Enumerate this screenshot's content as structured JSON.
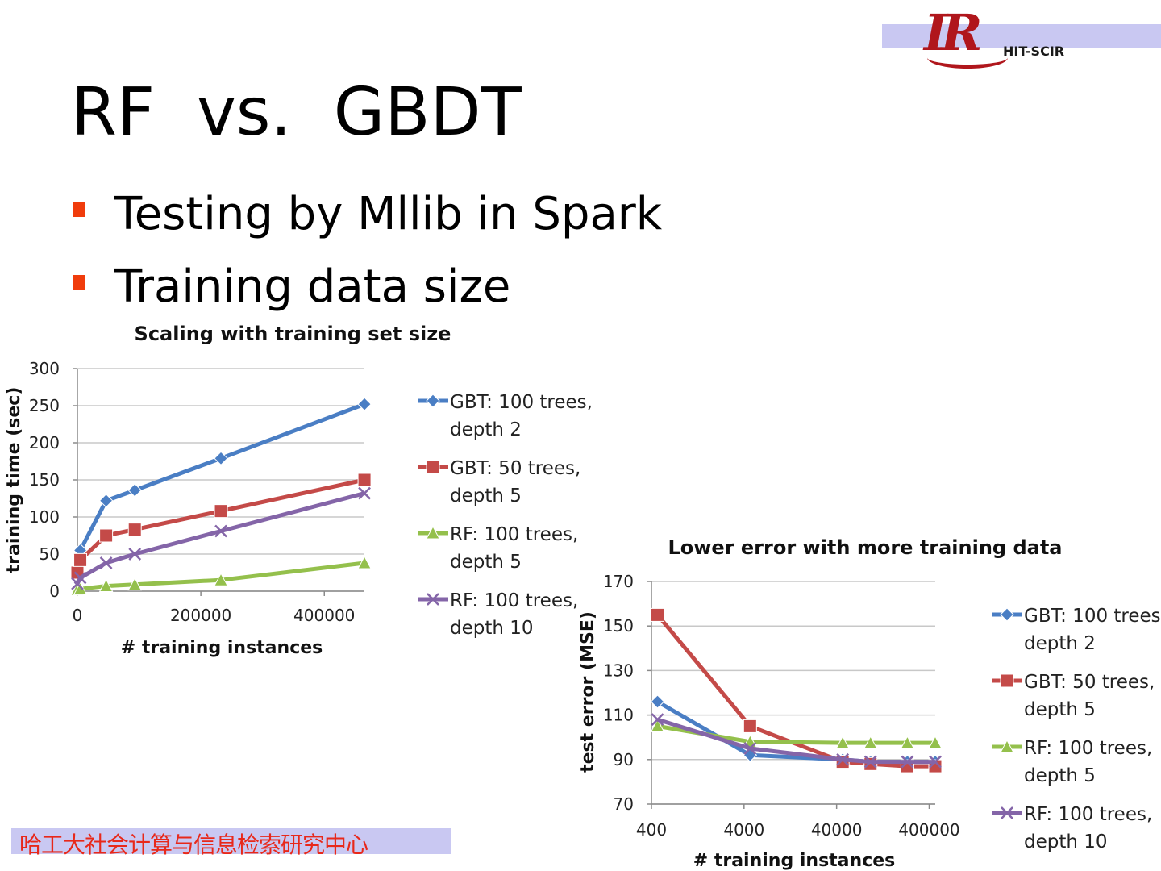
{
  "logo": {
    "mark": "IR",
    "text": "HIT-SCIR"
  },
  "slide": {
    "title": "RF  vs.  GBDT",
    "bullets": [
      "Testing by Mllib in Spark",
      "Training data size"
    ]
  },
  "footer": {
    "text": "哈工大社会计算与信息检索研究中心"
  },
  "colors": {
    "gbt100": "#4a7ec4",
    "gbt50": "#c44a48",
    "rf5": "#94c04c",
    "rf10": "#8465a8",
    "bullet": "#f03c0c"
  },
  "chart_data": [
    {
      "type": "line",
      "title": "Scaling with training set size",
      "xlabel": "# training instances",
      "ylabel": "training time (sec)",
      "xlim": [
        0,
        465000
      ],
      "ylim": [
        0,
        300
      ],
      "xticks": [
        "0",
        "200000",
        "400000"
      ],
      "yticks": [
        "0",
        "50",
        "100",
        "150",
        "200",
        "250",
        "300"
      ],
      "grid": true,
      "legend": "right",
      "series": [
        {
          "name": "GBT: 100 trees, depth 2",
          "marker": "diamond",
          "x": [
            4651,
            46510,
            93020,
            232550,
            465100
          ],
          "y": [
            55,
            122,
            136,
            179,
            252
          ]
        },
        {
          "name": "GBT: 50 trees, depth 5",
          "marker": "square",
          "x": [
            0,
            4651,
            46510,
            93020,
            232550,
            465100
          ],
          "y": [
            25,
            42,
            75,
            83,
            108,
            150
          ]
        },
        {
          "name": "RF: 100 trees, depth 5",
          "marker": "triangle",
          "x": [
            0,
            4651,
            46510,
            93020,
            232550,
            465100
          ],
          "y": [
            2,
            3,
            7,
            9,
            15,
            38
          ]
        },
        {
          "name": "RF: 100 trees, depth 10",
          "marker": "x",
          "x": [
            0,
            4651,
            46510,
            93020,
            232550,
            465100
          ],
          "y": [
            10,
            18,
            38,
            50,
            81,
            132
          ]
        }
      ]
    },
    {
      "type": "line",
      "title": "Lower error with more training data",
      "xlabel": "# training instances",
      "ylabel": "test error (MSE)",
      "xscale": "log",
      "xlim": [
        400,
        465100
      ],
      "ylim": [
        70,
        170
      ],
      "xticks": [
        "400",
        "4000",
        "40000",
        "400000"
      ],
      "yticks": [
        "70",
        "90",
        "110",
        "130",
        "150",
        "170"
      ],
      "grid": true,
      "legend": "right",
      "series": [
        {
          "name": "GBT: 100 trees, depth 2",
          "marker": "diamond",
          "x": [
            465,
            4651,
            46510,
            93020,
            232550,
            465100
          ],
          "y": [
            116,
            92,
            90,
            89,
            89,
            89
          ]
        },
        {
          "name": "GBT: 50 trees, depth 5",
          "marker": "square",
          "x": [
            465,
            4651,
            46510,
            93020,
            232550,
            465100
          ],
          "y": [
            155,
            105,
            89,
            88,
            87,
            87
          ]
        },
        {
          "name": "RF: 100 trees, depth 5",
          "marker": "triangle",
          "x": [
            465,
            4651,
            46510,
            93020,
            232550,
            465100
          ],
          "y": [
            105,
            98,
            97.5,
            97.5,
            97.5,
            97.5
          ]
        },
        {
          "name": "RF: 100 trees, depth 10",
          "marker": "x",
          "x": [
            465,
            4651,
            46510,
            93020,
            232550,
            465100
          ],
          "y": [
            108,
            95,
            90,
            89,
            89,
            89
          ]
        }
      ]
    }
  ]
}
